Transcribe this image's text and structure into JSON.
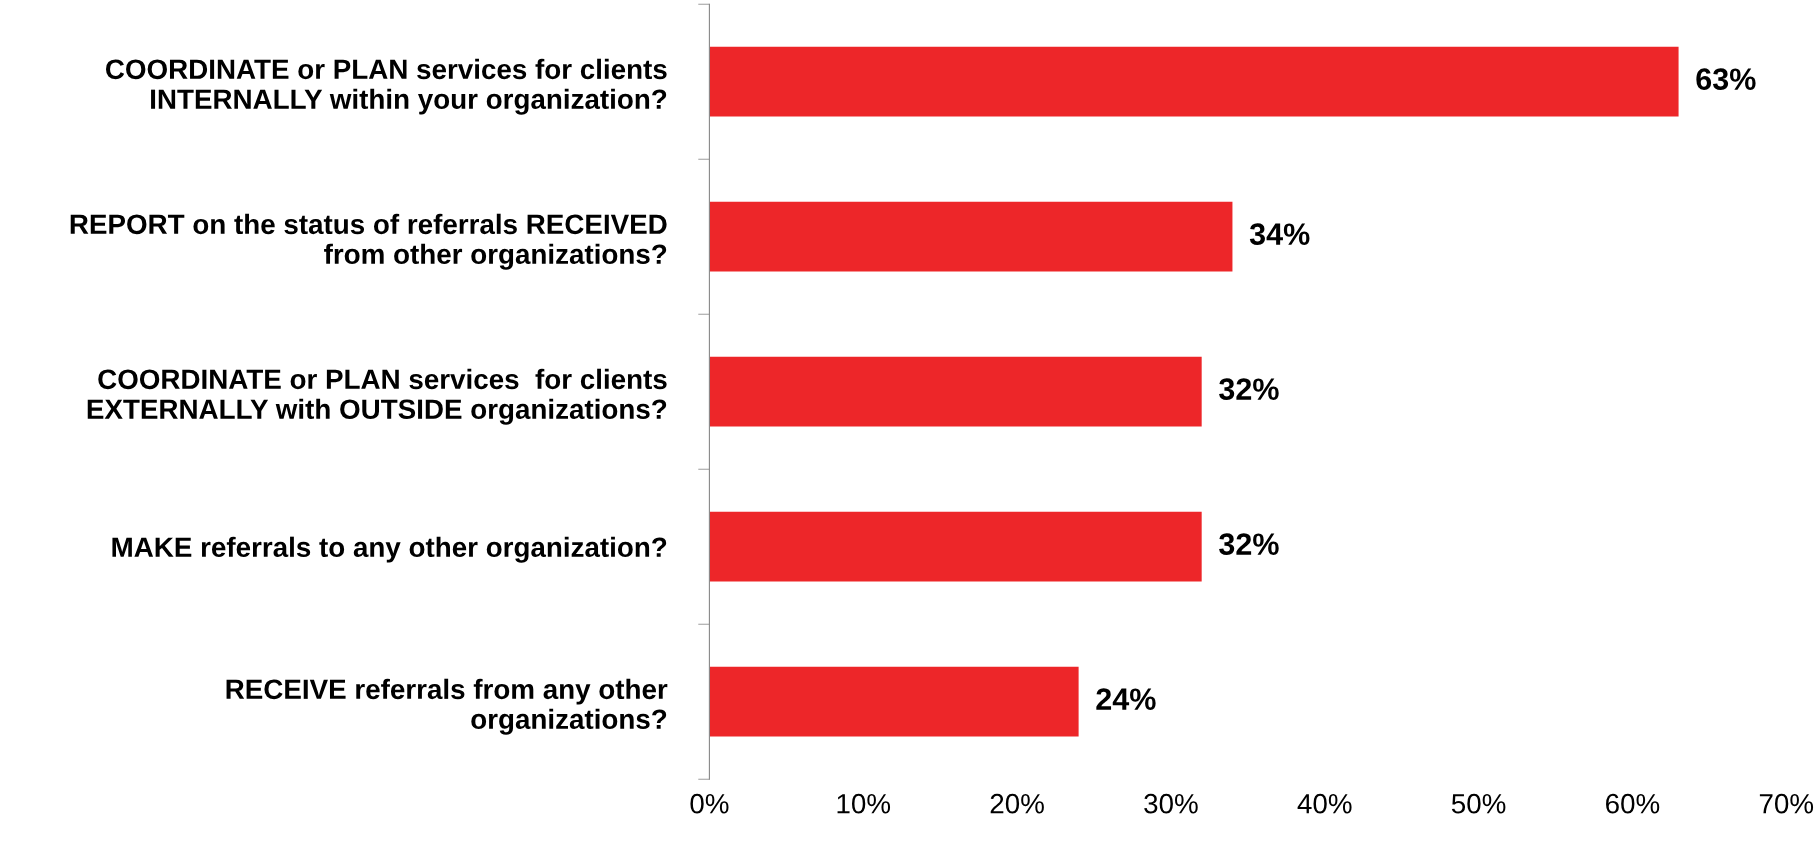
{
  "chart_data": {
    "type": "bar",
    "orientation": "horizontal",
    "categories": [
      "COORDINATE or PLAN services for clients\nINTERNALLY within your organization?",
      "REPORT on the status of referrals RECEIVED\nfrom other organizations?",
      "COORDINATE or PLAN services  for clients\nEXTERNALLY with OUTSIDE organizations?",
      "MAKE referrals to any other organization?",
      "RECEIVE referrals from any other\norganizations?"
    ],
    "values": [
      63,
      34,
      32,
      32,
      24
    ],
    "value_labels": [
      "63%",
      "34%",
      "32%",
      "32%",
      "24%"
    ],
    "color": "#ed2629",
    "xlim": [
      0,
      70
    ],
    "xticks": [
      {
        "value": 0,
        "label": "0%"
      },
      {
        "value": 10,
        "label": "10%"
      },
      {
        "value": 20,
        "label": "20%"
      },
      {
        "value": 30,
        "label": "30%"
      },
      {
        "value": 40,
        "label": "40%"
      },
      {
        "value": 50,
        "label": "50%"
      },
      {
        "value": 60,
        "label": "60%"
      },
      {
        "value": 70,
        "label": "70%"
      }
    ],
    "grid": false,
    "legend": false
  }
}
